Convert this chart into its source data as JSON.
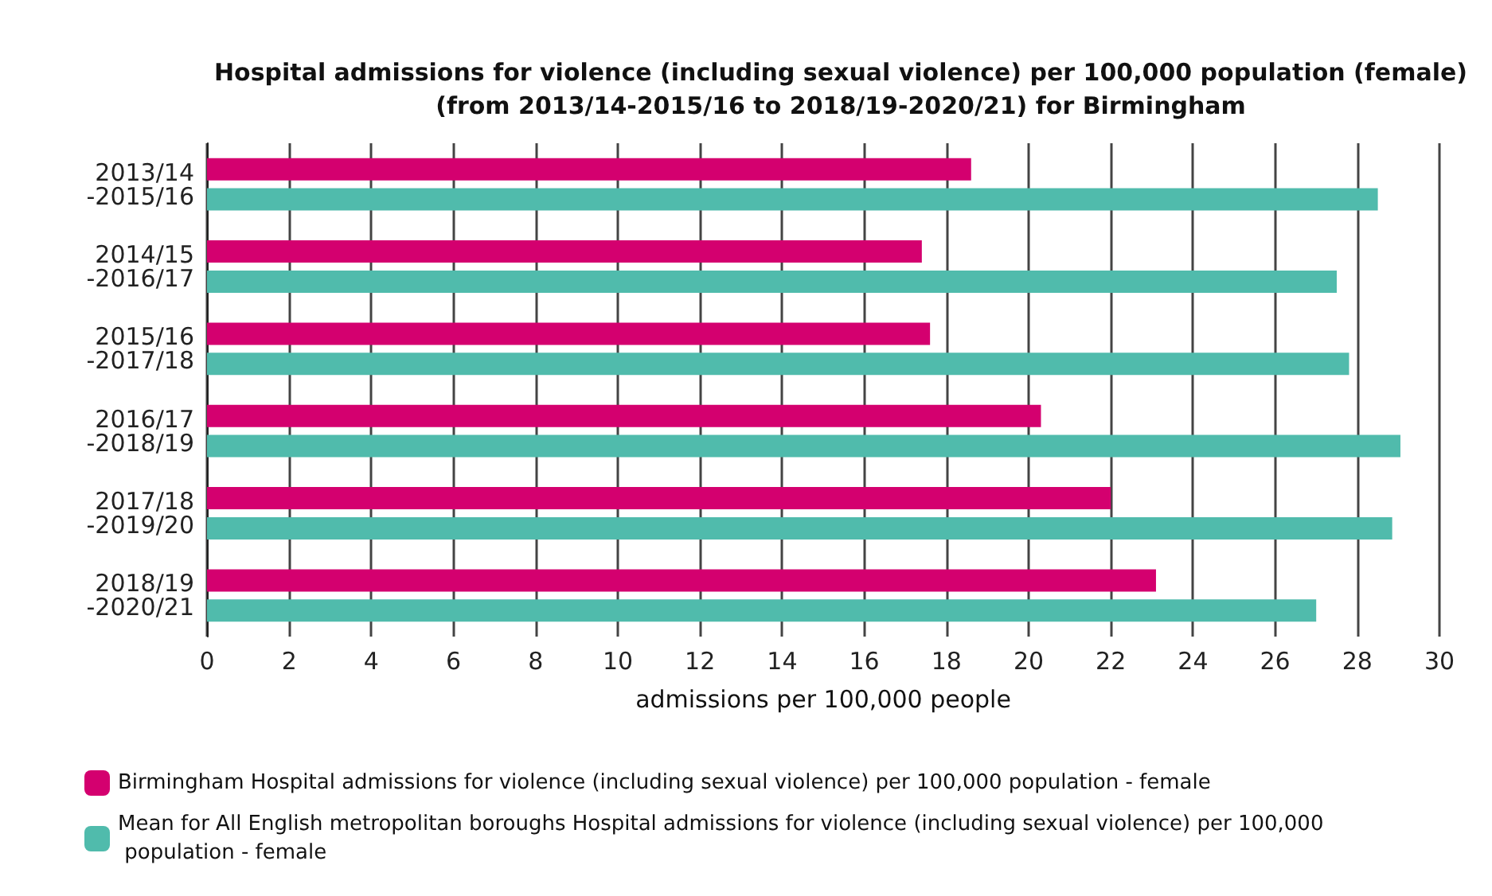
{
  "chart_data": {
    "type": "bar",
    "orientation": "horizontal",
    "title": "Hospital admissions for violence (including sexual violence) per 100,000 population (female)\n(from 2013/14-2015/16 to 2018/19-2020/21) for Birmingham",
    "xlabel": "admissions per 100,000 people",
    "categories": [
      "2013/14\n-2015/16",
      "2014/15\n-2016/17",
      "2015/16\n-2017/18",
      "2016/17\n-2018/19",
      "2017/18\n-2019/20",
      "2018/19\n-2020/21"
    ],
    "series": [
      {
        "name": "Birmingham Hospital admissions for violence (including sexual violence) per 100,000 population - female",
        "color": "#d4006f",
        "values": [
          18.6,
          17.4,
          17.6,
          20.3,
          22.0,
          23.1
        ]
      },
      {
        "name": "Mean for All English metropolitan boroughs Hospital admissions for violence (including sexual violence) per 100,000 population - female",
        "color": "#50bbac",
        "values": [
          28.5,
          27.5,
          27.8,
          29.05,
          28.85,
          27.0
        ]
      }
    ],
    "xlim": [
      0,
      30
    ],
    "xticks": [
      0,
      2,
      4,
      6,
      8,
      10,
      12,
      14,
      16,
      18,
      20,
      22,
      24,
      26,
      28,
      30
    ],
    "grid": "x",
    "legend": "bottom left"
  }
}
